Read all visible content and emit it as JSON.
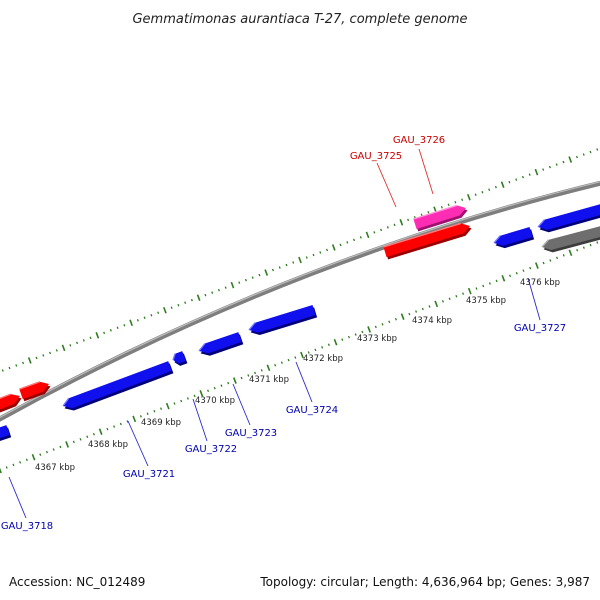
{
  "title": "Gemmatimonas aurantiaca T-27, complete genome",
  "footer": {
    "accession": "Accession: NC_012489",
    "summary": "Topology: circular; Length: 4,636,964 bp; Genes: 3,987"
  },
  "colors": {
    "backbone": "#8c8c8c",
    "tick": "#2e7d1e",
    "gene_forward_red": "#ff0000",
    "gene_forward_pink": "#ff2db4",
    "gene_reverse_blue": "#1010ee",
    "gene_other_grey": "#6e6e6e",
    "label_red": "#cc0000",
    "label_blue": "#0000b0"
  },
  "kbp_markers": [
    "4367 kbp",
    "4368 kbp",
    "4369 kbp",
    "4370 kbp",
    "4371 kbp",
    "4372 kbp",
    "4373 kbp",
    "4374 kbp",
    "4375 kbp",
    "4376 kbp"
  ],
  "genes": [
    {
      "name": "GAU_3718",
      "color": "blue",
      "strand": "reverse"
    },
    {
      "name": "GAU_3721",
      "color": "blue",
      "strand": "reverse"
    },
    {
      "name": "GAU_3722",
      "color": "blue",
      "strand": "reverse"
    },
    {
      "name": "GAU_3723",
      "color": "blue",
      "strand": "reverse"
    },
    {
      "name": "GAU_3724",
      "color": "blue",
      "strand": "reverse"
    },
    {
      "name": "GAU_3725",
      "color": "red",
      "strand": "forward"
    },
    {
      "name": "GAU_3726",
      "color": "pink",
      "strand": "forward"
    },
    {
      "name": "GAU_3727",
      "color": "blue",
      "strand": "reverse"
    }
  ]
}
